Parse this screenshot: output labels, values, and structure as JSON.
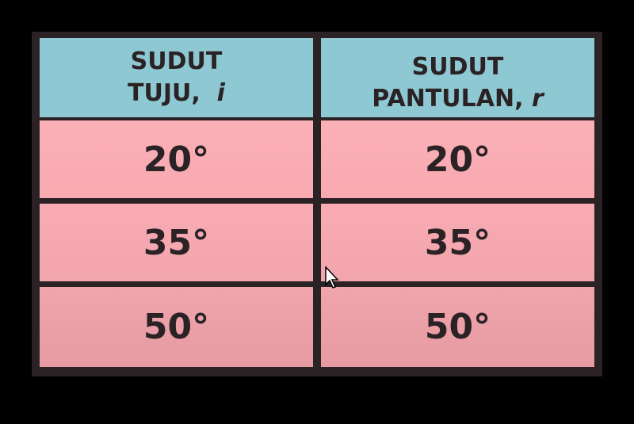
{
  "table": {
    "headers": [
      {
        "line1": "SUDUT",
        "line2": "TUJU,",
        "symbol": "i"
      },
      {
        "line1": "SUDUT",
        "line2": "PANTULAN,",
        "symbol": "r"
      }
    ],
    "rows": [
      [
        "20°",
        "20°"
      ],
      [
        "35°",
        "35°"
      ],
      [
        "50°",
        "50°"
      ]
    ]
  },
  "colors": {
    "header": "#8ec8d2",
    "row": "#f9adb4",
    "border": "#2a2224"
  }
}
